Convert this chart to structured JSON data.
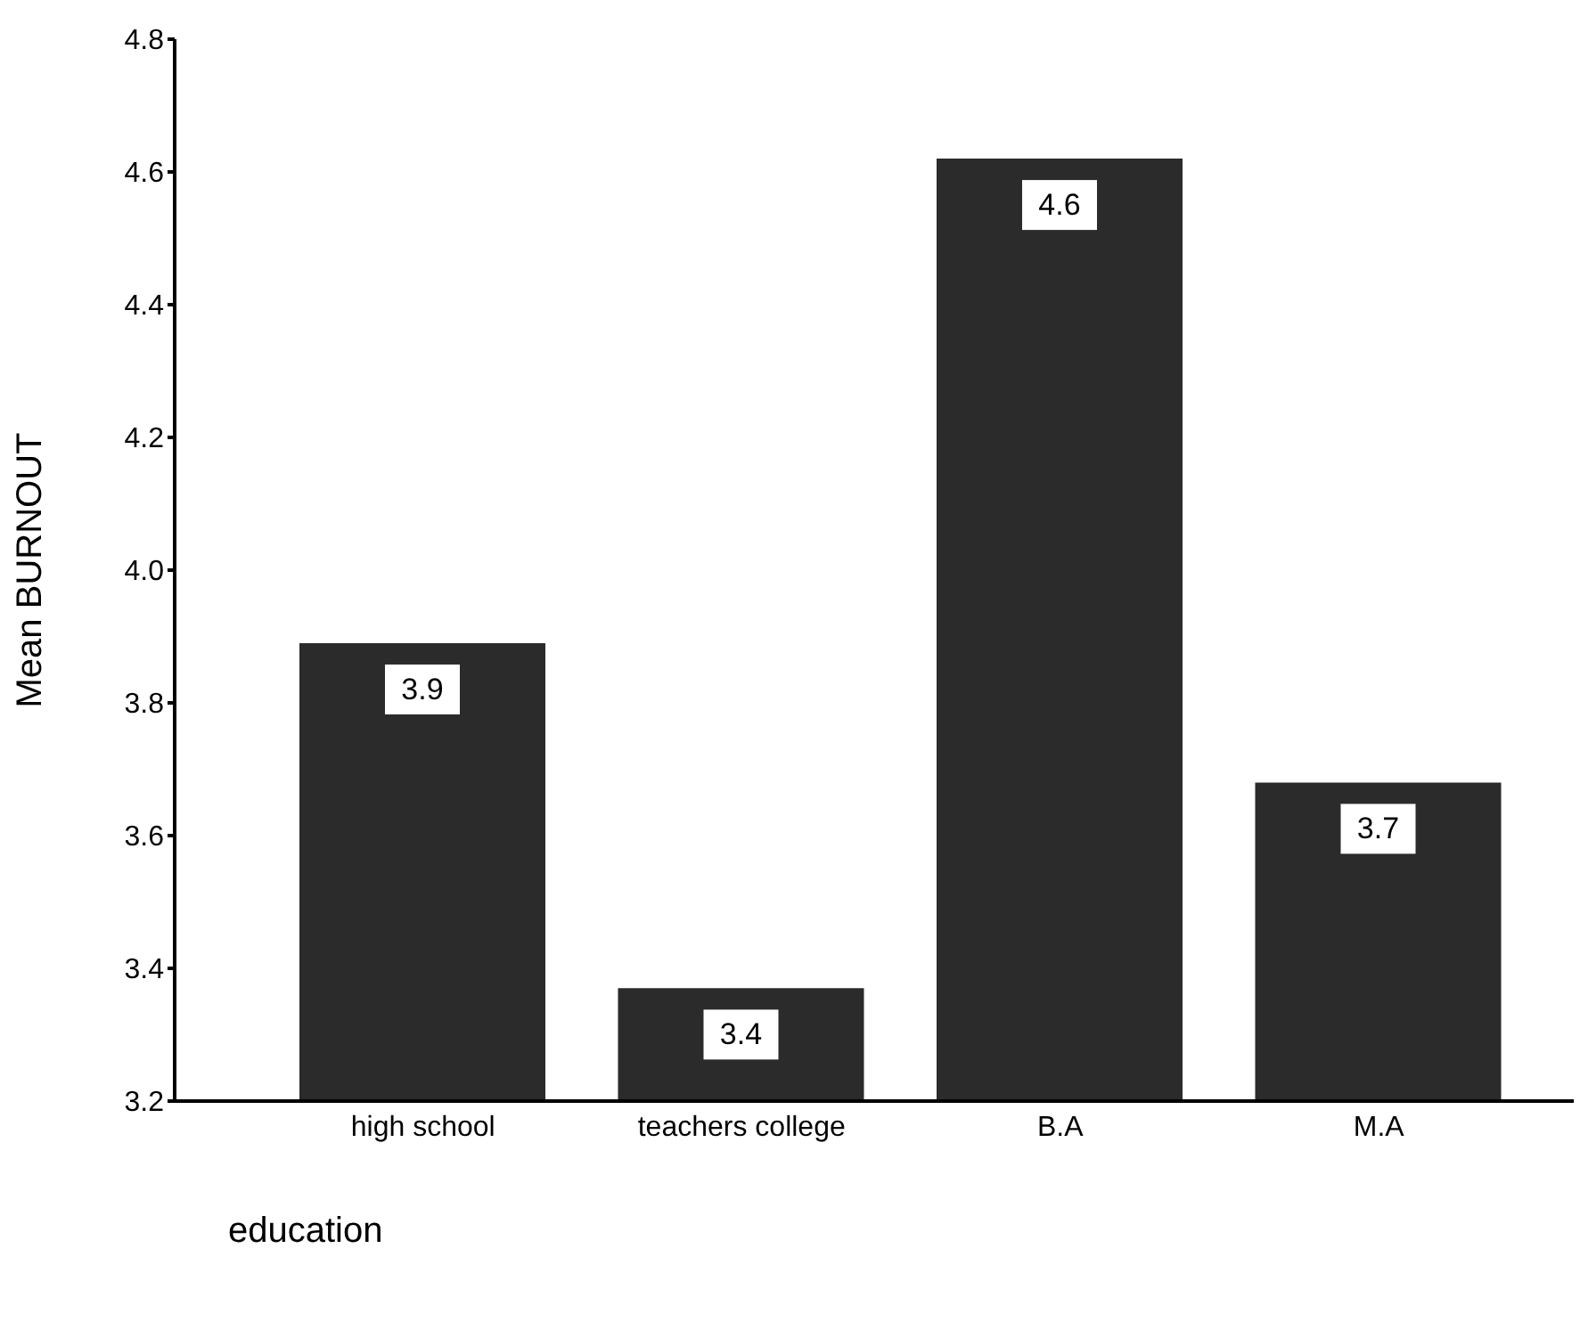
{
  "chart_data": {
    "type": "bar",
    "xlabel": "education",
    "ylabel": "Mean BURNOUT",
    "categories": [
      "high school",
      "teachers college",
      "B.A",
      "M.A"
    ],
    "values": [
      3.89,
      3.37,
      4.62,
      3.68
    ],
    "value_labels": [
      "3.9",
      "3.4",
      "4.6",
      "3.7"
    ],
    "color": "#2b2b2b",
    "ylim": [
      3.2,
      4.8
    ],
    "yticks": [
      3.2,
      3.4,
      3.6,
      3.8,
      {
        "value": 4,
        "label": "4.0"
      },
      4.2,
      4.4,
      4.6,
      4.8
    ],
    "grid": false,
    "legend": false
  }
}
